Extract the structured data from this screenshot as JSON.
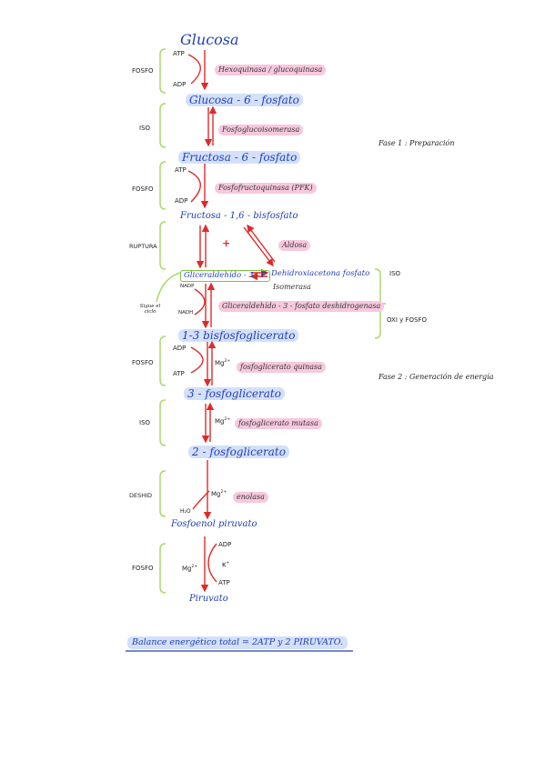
{
  "metabolites": {
    "glucosa": "Glucosa",
    "g6p": "Glucosa - 6 - fosfato",
    "f6p": "Fructosa - 6 - fosfato",
    "f16bp": "Fructosa - 1,6 - bisfosfato",
    "g3p": "Gliceraldehído - 3 - P",
    "dhap": "Dehidroxiacetona fosfato",
    "bpg13": "1-3 bisfosfoglicerato",
    "pg3": "3 - fosfoglicerato",
    "pg2": "2 - fosfoglicerato",
    "pep": "Fosfoenol piruvato",
    "piruvato": "Piruvato"
  },
  "enzymes": {
    "hexoquinasa": "Hexoquinasa / glucoquinasa",
    "fosfoglucoisomerasa": "Fosfoglucoisomerasa",
    "pfk": "Fosfofructoquinasa (PFK)",
    "aldosa": "Aldosa",
    "isomerasa": "Isomerasa",
    "g3pdh": "Gliceraldehído - 3 - fosfato deshidrogenasa",
    "pgk": "fosfoglicerato quinasa",
    "pgm": "fosfoglicerato mutasa",
    "enolasa": "enolasa"
  },
  "step_labels": {
    "fosfo1": "FOSFO",
    "iso1": "ISO",
    "fosfo2": "FOSFO",
    "ruptura": "RUPTURA",
    "fosfo3": "FOSFO",
    "iso2": "ISO",
    "deshid": "DESHID",
    "fosfo4": "FOSFO",
    "iso_right": "ISO",
    "oxi_fosfo": "OXI y FOSFO",
    "sigue_ciclo": "Sigue el ciclo"
  },
  "cofactors": {
    "atp": "ATP",
    "adp": "ADP",
    "nadp": "NADP",
    "nadh": "NADH",
    "mg": "Mg",
    "mg_sup": "2+",
    "h2o": "H₂O",
    "k": "K",
    "k_sup": "+",
    "plus": "+"
  },
  "phases": {
    "fase1": "Fase 1 : Preparación",
    "fase2": "Fase 2 : Generación de energía"
  },
  "balance": "Balance energético total = 2ATP y 2 PIRUVATO.",
  "colors": {
    "arrow": "#e02a2a",
    "metabolite": "#1f3fb5",
    "bracket": "#a8d96a",
    "enzyme_highlight": "#f7c8de",
    "metabolite_highlight": "#b0c6f5"
  }
}
